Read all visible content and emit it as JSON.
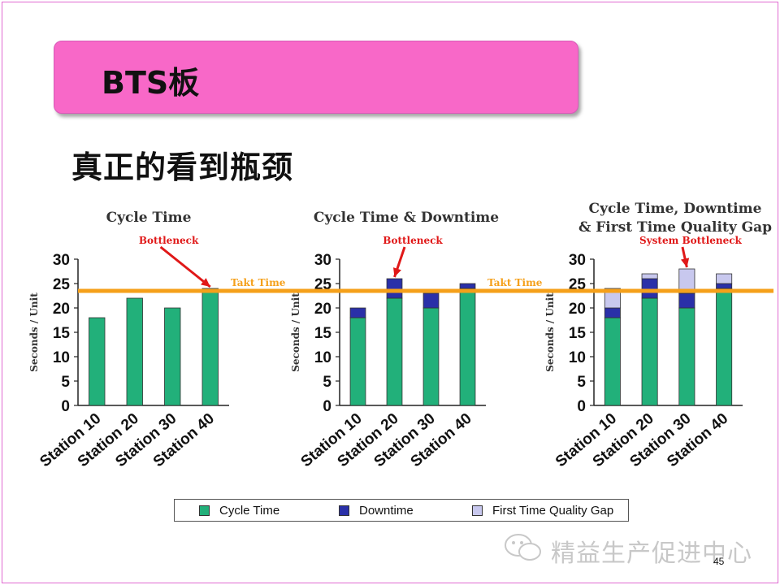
{
  "slide": {
    "title": "BTS板",
    "subtitle": "真正的看到瓶颈",
    "page_number": "45",
    "watermark": "精益生产促进中心"
  },
  "colors": {
    "frame": "#e06ad0",
    "title_bg": "#f868c8",
    "cycle_time": "#22b07a",
    "downtime": "#2a30a8",
    "quality_gap": "#c8c8ee",
    "takt_line": "#f5a01a",
    "annotation": "#e01818"
  },
  "legend": [
    {
      "label": "Cycle Time",
      "color": "#22b07a"
    },
    {
      "label": "Downtime",
      "color": "#2a30a8"
    },
    {
      "label": "First Time Quality Gap",
      "color": "#c8c8ee"
    }
  ],
  "chart_data": [
    {
      "type": "bar",
      "title": [
        "Cycle Time"
      ],
      "ylabel": "Seconds / Unit",
      "ylim": [
        0,
        30
      ],
      "yticks": [
        0,
        5,
        10,
        15,
        20,
        25,
        30
      ],
      "categories": [
        "Station 10",
        "Station 20",
        "Station 30",
        "Station 40"
      ],
      "series": [
        {
          "name": "Cycle Time",
          "values": [
            18,
            22,
            20,
            24
          ]
        }
      ],
      "takt_time": 23.5,
      "takt_label": "Takt Time",
      "annotation": {
        "text": "Bottleneck",
        "target_category": "Station 40"
      }
    },
    {
      "type": "bar",
      "title": [
        "Cycle Time & Downtime"
      ],
      "ylabel": "Seconds / Unit",
      "ylim": [
        0,
        30
      ],
      "yticks": [
        0,
        5,
        10,
        15,
        20,
        25,
        30
      ],
      "categories": [
        "Station 10",
        "Station 20",
        "Station 30",
        "Station 40"
      ],
      "series": [
        {
          "name": "Cycle Time",
          "values": [
            18,
            22,
            20,
            24
          ]
        },
        {
          "name": "Downtime",
          "values": [
            2,
            4,
            3,
            1
          ]
        }
      ],
      "takt_time": 23.5,
      "takt_label": "Takt Time",
      "annotation": {
        "text": "Bottleneck",
        "target_category": "Station 20"
      }
    },
    {
      "type": "bar",
      "title": [
        "Cycle Time, Downtime",
        "& First Time Quality Gap"
      ],
      "ylabel": "Seconds / Unit",
      "ylim": [
        0,
        30
      ],
      "yticks": [
        0,
        5,
        10,
        15,
        20,
        25,
        30
      ],
      "categories": [
        "Station 10",
        "Station 20",
        "Station 30",
        "Station 40"
      ],
      "series": [
        {
          "name": "Cycle Time",
          "values": [
            18,
            22,
            20,
            24
          ]
        },
        {
          "name": "Downtime",
          "values": [
            2,
            4,
            3,
            1
          ]
        },
        {
          "name": "First Time Quality Gap",
          "values": [
            4,
            1,
            5,
            2
          ]
        }
      ],
      "takt_time": 23.5,
      "annotation": {
        "text": "System Bottleneck",
        "target_category": "Station 30"
      }
    }
  ]
}
